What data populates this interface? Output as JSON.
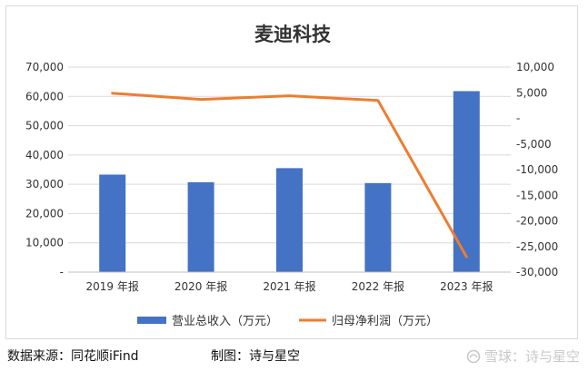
{
  "chart_data": {
    "type": "bar+line",
    "title": "麦迪科技",
    "categories": [
      "2019 年报",
      "2020 年报",
      "2021 年报",
      "2022 年报",
      "2023 年报"
    ],
    "series": [
      {
        "name": "营业总收入（万元）",
        "type": "bar",
        "axis": "left",
        "values": [
          33300,
          30700,
          35500,
          30400,
          61800
        ],
        "color": "#4472c4"
      },
      {
        "name": "归母净利润（万元）",
        "type": "line",
        "axis": "right",
        "values": [
          4900,
          3700,
          4400,
          3500,
          -27000
        ],
        "color": "#ed7d31"
      }
    ],
    "y_left": {
      "min": 0,
      "max": 70000,
      "step": 10000,
      "ticks": [
        "-",
        "10,000",
        "20,000",
        "30,000",
        "40,000",
        "50,000",
        "60,000",
        "70,000"
      ]
    },
    "y_right": {
      "min": -30000,
      "max": 10000,
      "step": 5000,
      "ticks": [
        "-30,000",
        "-25,000",
        "-20,000",
        "-15,000",
        "-10,000",
        "-5,000",
        "-",
        "5,000",
        "10,000"
      ]
    },
    "grid": true,
    "legend": "bottom"
  },
  "footer": {
    "source": "数据来源：同花顺iFind",
    "made_by": "制图：诗与星空",
    "watermark": "雪球：诗与星空"
  }
}
